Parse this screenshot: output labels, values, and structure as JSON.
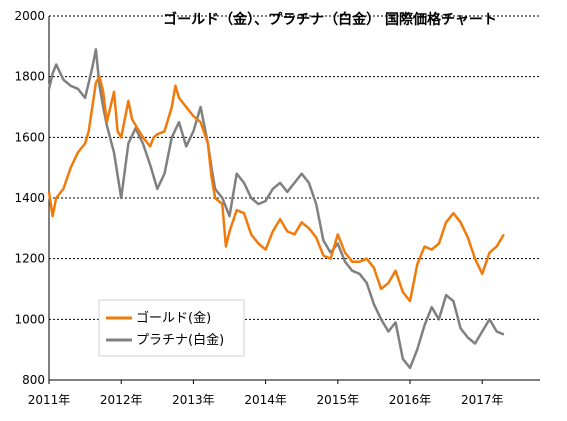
{
  "chart_data": {
    "type": "line",
    "title": "ゴールド（金）、プラチナ（白金） 国際価格チャート",
    "xlabel": "",
    "ylabel": "",
    "xlim": [
      2011.0,
      2017.8
    ],
    "ylim": [
      800,
      2000
    ],
    "x_ticks": [
      2011,
      2012,
      2013,
      2014,
      2015,
      2016,
      2017
    ],
    "x_tick_labels": [
      "2011年",
      "2012年",
      "2013年",
      "2014年",
      "2015年",
      "2016年",
      "2017年"
    ],
    "y_ticks": [
      800,
      1000,
      1200,
      1400,
      1600,
      1800,
      2000
    ],
    "y_tick_labels": [
      "800",
      "1000",
      "1200",
      "1400",
      "1600",
      "1800",
      "2000"
    ],
    "grid": "horizontal dashed",
    "legend_position": "bottom-left",
    "series": [
      {
        "name": "ゴールド(金)",
        "color": "#F07A0A",
        "x": [
          2011.0,
          2011.05,
          2011.1,
          2011.2,
          2011.3,
          2011.4,
          2011.5,
          2011.55,
          2011.6,
          2011.65,
          2011.7,
          2011.75,
          2011.8,
          2011.85,
          2011.9,
          2011.95,
          2012.0,
          2012.1,
          2012.15,
          2012.2,
          2012.3,
          2012.4,
          2012.45,
          2012.5,
          2012.6,
          2012.7,
          2012.75,
          2012.8,
          2012.9,
          2013.0,
          2013.1,
          2013.2,
          2013.25,
          2013.3,
          2013.4,
          2013.45,
          2013.5,
          2013.6,
          2013.7,
          2013.8,
          2013.9,
          2014.0,
          2014.1,
          2014.2,
          2014.3,
          2014.4,
          2014.5,
          2014.6,
          2014.7,
          2014.8,
          2014.9,
          2015.0,
          2015.1,
          2015.2,
          2015.3,
          2015.4,
          2015.5,
          2015.6,
          2015.7,
          2015.8,
          2015.9,
          2016.0,
          2016.1,
          2016.2,
          2016.3,
          2016.4,
          2016.5,
          2016.6,
          2016.7,
          2016.8,
          2016.9,
          2017.0,
          2017.1,
          2017.2,
          2017.3
        ],
        "values": [
          1420,
          1340,
          1400,
          1430,
          1500,
          1550,
          1580,
          1620,
          1700,
          1780,
          1800,
          1750,
          1650,
          1700,
          1750,
          1620,
          1600,
          1720,
          1660,
          1640,
          1600,
          1570,
          1600,
          1610,
          1620,
          1700,
          1770,
          1730,
          1700,
          1670,
          1650,
          1580,
          1470,
          1400,
          1380,
          1240,
          1290,
          1360,
          1350,
          1280,
          1250,
          1230,
          1290,
          1330,
          1290,
          1280,
          1320,
          1300,
          1270,
          1210,
          1200,
          1280,
          1220,
          1190,
          1190,
          1200,
          1170,
          1100,
          1120,
          1160,
          1090,
          1060,
          1180,
          1240,
          1230,
          1250,
          1320,
          1350,
          1320,
          1270,
          1200,
          1150,
          1220,
          1240,
          1280
        ]
      },
      {
        "name": "プラチナ(白金)",
        "color": "#808080",
        "x": [
          2011.0,
          2011.05,
          2011.1,
          2011.2,
          2011.3,
          2011.4,
          2011.5,
          2011.6,
          2011.65,
          2011.7,
          2011.75,
          2011.8,
          2011.9,
          2012.0,
          2012.1,
          2012.2,
          2012.3,
          2012.4,
          2012.5,
          2012.6,
          2012.7,
          2012.8,
          2012.9,
          2013.0,
          2013.1,
          2013.2,
          2013.25,
          2013.3,
          2013.4,
          2013.5,
          2013.6,
          2013.7,
          2013.8,
          2013.9,
          2014.0,
          2014.1,
          2014.2,
          2014.3,
          2014.4,
          2014.5,
          2014.6,
          2014.7,
          2014.8,
          2014.9,
          2015.0,
          2015.1,
          2015.2,
          2015.3,
          2015.4,
          2015.5,
          2015.6,
          2015.7,
          2015.8,
          2015.9,
          2016.0,
          2016.1,
          2016.2,
          2016.3,
          2016.4,
          2016.5,
          2016.6,
          2016.7,
          2016.8,
          2016.9,
          2017.0,
          2017.1,
          2017.2,
          2017.3
        ],
        "values": [
          1760,
          1810,
          1840,
          1790,
          1770,
          1760,
          1730,
          1830,
          1890,
          1770,
          1700,
          1640,
          1550,
          1400,
          1580,
          1630,
          1580,
          1510,
          1430,
          1480,
          1600,
          1650,
          1570,
          1620,
          1700,
          1580,
          1500,
          1430,
          1400,
          1340,
          1480,
          1450,
          1400,
          1380,
          1390,
          1430,
          1450,
          1420,
          1450,
          1480,
          1450,
          1380,
          1260,
          1220,
          1250,
          1190,
          1160,
          1150,
          1120,
          1050,
          1000,
          960,
          990,
          870,
          840,
          900,
          980,
          1040,
          1000,
          1080,
          1060,
          970,
          940,
          920,
          960,
          1000,
          960,
          950
        ]
      }
    ]
  }
}
